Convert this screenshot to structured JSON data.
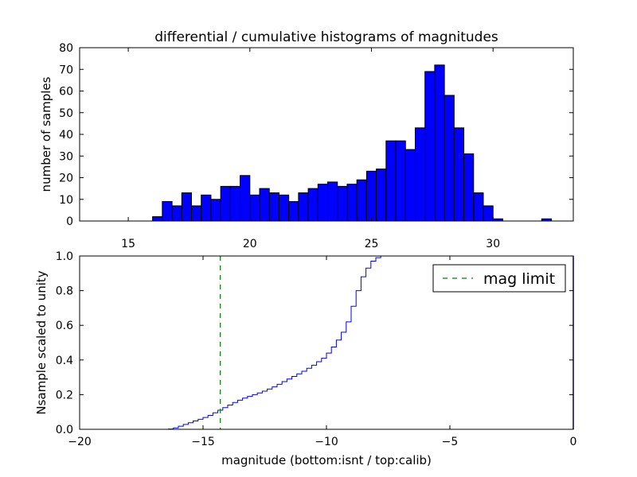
{
  "chart_data": [
    {
      "type": "bar",
      "title": "differential / cumulative histograms of magnitudes",
      "xlabel": "",
      "ylabel": "number of samples",
      "xlim": [
        13.0,
        33.3
      ],
      "ylim": [
        0,
        80
      ],
      "xticks": [
        15,
        20,
        25,
        30
      ],
      "yticks": [
        0,
        10,
        20,
        30,
        40,
        50,
        60,
        70,
        80
      ],
      "bar_color": "#0000ff",
      "bin_width": 0.4,
      "bins": [
        {
          "x": 16.0,
          "value": 2
        },
        {
          "x": 16.4,
          "value": 9
        },
        {
          "x": 16.8,
          "value": 7
        },
        {
          "x": 17.2,
          "value": 13
        },
        {
          "x": 17.6,
          "value": 7
        },
        {
          "x": 18.0,
          "value": 12
        },
        {
          "x": 18.4,
          "value": 10
        },
        {
          "x": 18.8,
          "value": 16
        },
        {
          "x": 19.2,
          "value": 16
        },
        {
          "x": 19.6,
          "value": 21
        },
        {
          "x": 20.0,
          "value": 12
        },
        {
          "x": 20.4,
          "value": 15
        },
        {
          "x": 20.8,
          "value": 13
        },
        {
          "x": 21.2,
          "value": 12
        },
        {
          "x": 21.6,
          "value": 9
        },
        {
          "x": 22.0,
          "value": 13
        },
        {
          "x": 22.4,
          "value": 15
        },
        {
          "x": 22.8,
          "value": 17
        },
        {
          "x": 23.2,
          "value": 18
        },
        {
          "x": 23.6,
          "value": 16
        },
        {
          "x": 24.0,
          "value": 17
        },
        {
          "x": 24.4,
          "value": 19
        },
        {
          "x": 24.8,
          "value": 23
        },
        {
          "x": 25.2,
          "value": 24
        },
        {
          "x": 25.6,
          "value": 37
        },
        {
          "x": 26.0,
          "value": 37
        },
        {
          "x": 26.4,
          "value": 33
        },
        {
          "x": 26.8,
          "value": 43
        },
        {
          "x": 27.2,
          "value": 69
        },
        {
          "x": 27.6,
          "value": 72
        },
        {
          "x": 28.0,
          "value": 58
        },
        {
          "x": 28.4,
          "value": 43
        },
        {
          "x": 28.8,
          "value": 31
        },
        {
          "x": 29.2,
          "value": 13
        },
        {
          "x": 29.6,
          "value": 7
        },
        {
          "x": 30.0,
          "value": 1
        },
        {
          "x": 32.0,
          "value": 1
        }
      ]
    },
    {
      "type": "line",
      "title": "",
      "xlabel": "magnitude (bottom:isnt / top:calib)",
      "ylabel": "Nsample scaled to unity",
      "xlim": [
        -20,
        0
      ],
      "ylim": [
        0.0,
        1.0
      ],
      "xticks": [
        "−20",
        "−15",
        "−10",
        "−5",
        "0"
      ],
      "yticks": [
        "0.0",
        "0.2",
        "0.4",
        "0.6",
        "0.8",
        "1.0"
      ],
      "legend": {
        "position": "top-right",
        "entries": [
          "mag limit"
        ]
      },
      "series": [
        {
          "step": true,
          "color": "#0000ff",
          "x": [
            -20.0,
            -16.4,
            -16.2,
            -16.0,
            -15.8,
            -15.6,
            -15.4,
            -15.2,
            -15.0,
            -14.8,
            -14.6,
            -14.4,
            -14.2,
            -14.0,
            -13.8,
            -13.6,
            -13.4,
            -13.2,
            -13.0,
            -12.8,
            -12.6,
            -12.4,
            -12.2,
            -12.0,
            -11.8,
            -11.6,
            -11.4,
            -11.2,
            -11.0,
            -10.8,
            -10.6,
            -10.4,
            -10.2,
            -10.0,
            -9.8,
            -9.6,
            -9.4,
            -9.2,
            -9.0,
            -8.8,
            -8.6,
            -8.4,
            -8.2,
            -8.0,
            -7.8,
            -7.6,
            0.0
          ],
          "y": [
            0.0,
            0.002,
            0.008,
            0.018,
            0.028,
            0.038,
            0.048,
            0.058,
            0.068,
            0.08,
            0.095,
            0.11,
            0.125,
            0.14,
            0.155,
            0.168,
            0.18,
            0.19,
            0.2,
            0.21,
            0.22,
            0.232,
            0.245,
            0.26,
            0.275,
            0.29,
            0.305,
            0.32,
            0.335,
            0.352,
            0.37,
            0.39,
            0.41,
            0.44,
            0.475,
            0.515,
            0.56,
            0.62,
            0.71,
            0.8,
            0.88,
            0.93,
            0.97,
            0.99,
            1.0,
            1.0,
            1.0
          ]
        },
        {
          "name": "mag limit",
          "type": "vline",
          "style": "dashed",
          "color": "#008000",
          "x": -14.3
        }
      ]
    }
  ]
}
